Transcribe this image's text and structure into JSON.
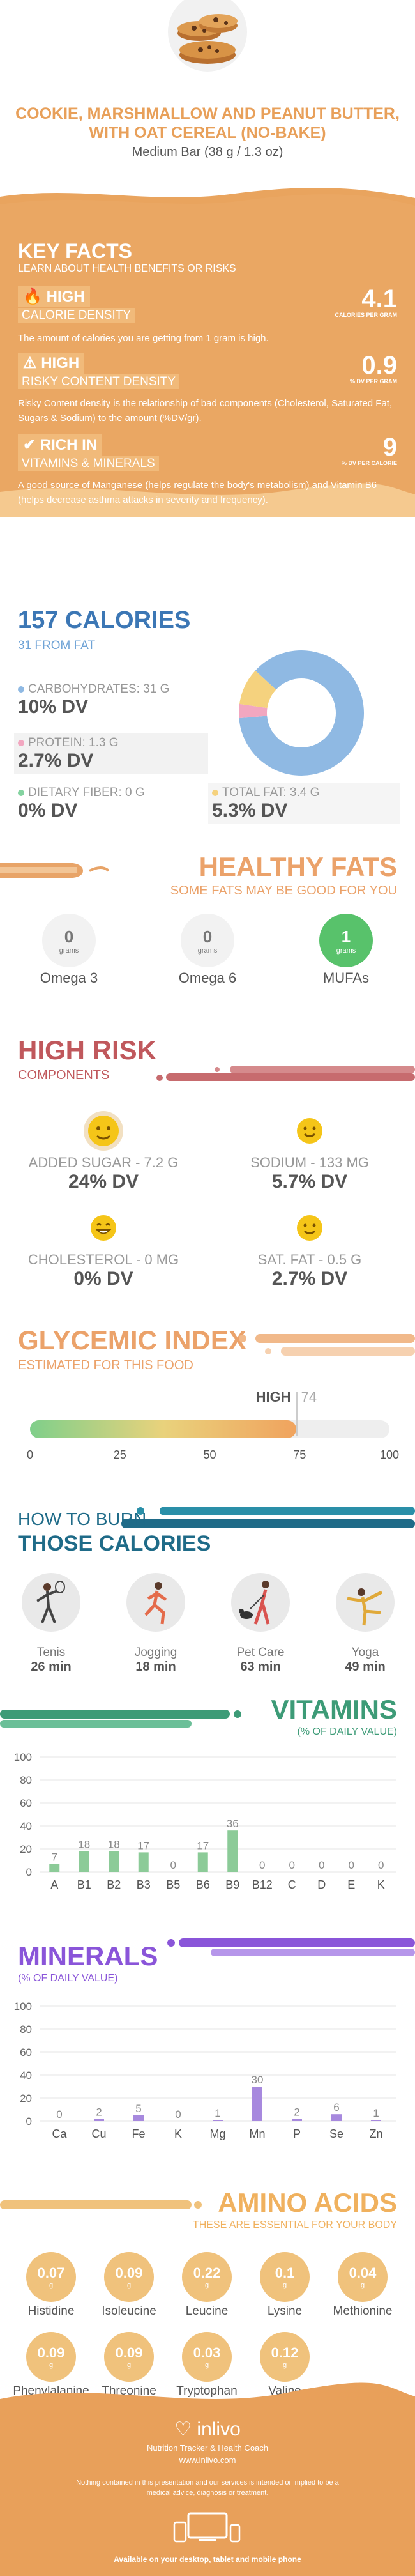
{
  "header": {
    "title": "COOKIE, MARSHMALLOW AND PEANUT BUTTER, WITH OAT CEREAL (NO-BAKE)",
    "serving": "Medium Bar (38 g / 1.3 oz)"
  },
  "key_facts": {
    "title": "KEY FACTS",
    "subtitle": "LEARN ABOUT HEALTH BENEFITS OR RISKS",
    "items": [
      {
        "level": "HIGH",
        "name": "CALORIE DENSITY",
        "value": "4.1",
        "unit": "CALORIES PER GRAM",
        "desc": "The amount of calories you are getting from 1 gram is high."
      },
      {
        "level": "HIGH",
        "name": "RISKY CONTENT DENSITY",
        "value": "0.9",
        "unit": "% DV PER GRAM",
        "desc": "Risky Content density is the relationship of bad components (Cholesterol, Saturated Fat, Sugars & Sodium) to the amount (%DV/gr)."
      },
      {
        "level": "RICH  IN",
        "name": "VITAMINS & MINERALS",
        "value": "9",
        "unit": "% DV PER CALORIE",
        "desc": "A good source of Manganese (helps regulate the body's metabolism) and Vitamin B6 (helps decrease asthma attacks in severity and frequency)."
      }
    ]
  },
  "calories": {
    "title": "157 CALORIES",
    "subtitle": "31 FROM FAT",
    "macros": [
      {
        "label": "CARBOHYDRATES: 31 g",
        "dv": "10% DV",
        "color": "#8fb9e3"
      },
      {
        "label": "PROTEIN: 1.3 g",
        "dv": "2.7% DV",
        "color": "#f2a7c0"
      },
      {
        "label": "DIETARY FIBER: 0 g",
        "dv": "0% DV",
        "color": "#84d3a0"
      },
      {
        "label": "TOTAL FAT: 3.4 g",
        "dv": "5.3% DV",
        "color": "#f5d27e"
      }
    ],
    "donut_shares": [
      {
        "name": "carbohydrates",
        "value": 31,
        "color": "#8fb9e3"
      },
      {
        "name": "protein",
        "value": 1.3,
        "color": "#f2a7c0"
      },
      {
        "name": "fat",
        "value": 3.4,
        "color": "#f5d27e"
      }
    ]
  },
  "healthy_fats": {
    "title": "HEALTHY FATS",
    "subtitle": "SOME FATS MAY BE GOOD FOR YOU",
    "items": [
      {
        "name": "Omega 3",
        "value": "0",
        "unit": "grams"
      },
      {
        "name": "Omega 6",
        "value": "0",
        "unit": "grams"
      },
      {
        "name": "MUFAs",
        "value": "1",
        "unit": "grams"
      }
    ]
  },
  "high_risk": {
    "title": "HIGH RISK",
    "subtitle": "COMPONENTS",
    "items": [
      {
        "label": "ADDED SUGAR - 7.2 g",
        "dv": "24% DV"
      },
      {
        "label": "SODIUM - 133 mg",
        "dv": "5.7% DV"
      },
      {
        "label": "CHOLESTEROL - 0 mg",
        "dv": "0% DV"
      },
      {
        "label": "SAT. FAT - 0.5 g",
        "dv": "2.7% DV"
      }
    ]
  },
  "glycemic": {
    "title": "GLYCEMIC INDEX",
    "subtitle": "ESTIMATED FOR THIS FOOD",
    "level": "HIGH",
    "value": 74,
    "value_text": "74",
    "ticks": [
      "0",
      "25",
      "50",
      "75",
      "100"
    ]
  },
  "burn": {
    "title1": "HOW TO BURN",
    "title2": "THOSE CALORIES",
    "activities": [
      {
        "name": "Tenis",
        "minutes": "26 min",
        "icon": "tennis-player-icon"
      },
      {
        "name": "Jogging",
        "minutes": "18 min",
        "icon": "jogger-icon"
      },
      {
        "name": "Pet Care",
        "minutes": "63 min",
        "icon": "dog-walker-icon"
      },
      {
        "name": "Yoga",
        "minutes": "49 min",
        "icon": "yoga-pose-icon"
      }
    ]
  },
  "vitamins": {
    "title": "VITAMINS",
    "subtitle": "(% OF DAILY VALUE)"
  },
  "minerals": {
    "title": "MINERALS",
    "subtitle": "(% OF DAILY VALUE)"
  },
  "chart_data": [
    {
      "type": "bar",
      "title": "VITAMINS",
      "subtitle": "(% OF DAILY VALUE)",
      "categories": [
        "A",
        "B1",
        "B2",
        "B3",
        "B5",
        "B6",
        "B9",
        "B12",
        "C",
        "D",
        "E",
        "K"
      ],
      "values": [
        7,
        18,
        18,
        17,
        0,
        17,
        36,
        0,
        0,
        0,
        0,
        0
      ],
      "ylim": [
        0,
        100
      ],
      "yticks": [
        0,
        20,
        40,
        60,
        80,
        100
      ],
      "color": "#8ccb98",
      "grid": true
    },
    {
      "type": "bar",
      "title": "MINERALS",
      "subtitle": "(% OF DAILY VALUE)",
      "categories": [
        "Ca",
        "Cu",
        "Fe",
        "K",
        "Mg",
        "Mn",
        "P",
        "Se",
        "Zn"
      ],
      "values": [
        0,
        2,
        5,
        0,
        1,
        30,
        2,
        6,
        1
      ],
      "ylim": [
        0,
        100
      ],
      "yticks": [
        0,
        20,
        40,
        60,
        80,
        100
      ],
      "color": "#a789de",
      "grid": true
    }
  ],
  "amino_acids": {
    "title": "AMINO ACIDS",
    "subtitle": "THESE ARE ESSENTIAL FOR YOUR BODY",
    "unit": "g",
    "items": [
      {
        "name": "Histidine",
        "value": "0.07"
      },
      {
        "name": "Isoleucine",
        "value": "0.09"
      },
      {
        "name": "Leucine",
        "value": "0.22"
      },
      {
        "name": "Lysine",
        "value": "0.1"
      },
      {
        "name": "Methionine",
        "value": "0.04"
      },
      {
        "name": "Phenylalanine",
        "value": "0.09"
      },
      {
        "name": "Threonine",
        "value": "0.09"
      },
      {
        "name": "Tryptophan",
        "value": "0.03"
      },
      {
        "name": "Valine",
        "value": "0.12"
      }
    ]
  },
  "footer": {
    "brand": "inlivo",
    "tagline": "Nutrition Tracker & Health Coach",
    "url": "www.inlivo.com",
    "disclaimer": "Nothing contained in this presentation and our services is intended or implied to be a medical advice, diagnosis or treatment.",
    "availability": "Available on your desktop, tablet and mobile phone"
  },
  "colors": {
    "orange": "#e8a05a",
    "blue": "#3c77b5",
    "red": "#c0585c",
    "teal": "#1f6b88",
    "green": "#3d9b77",
    "purple": "#8a55d9"
  }
}
